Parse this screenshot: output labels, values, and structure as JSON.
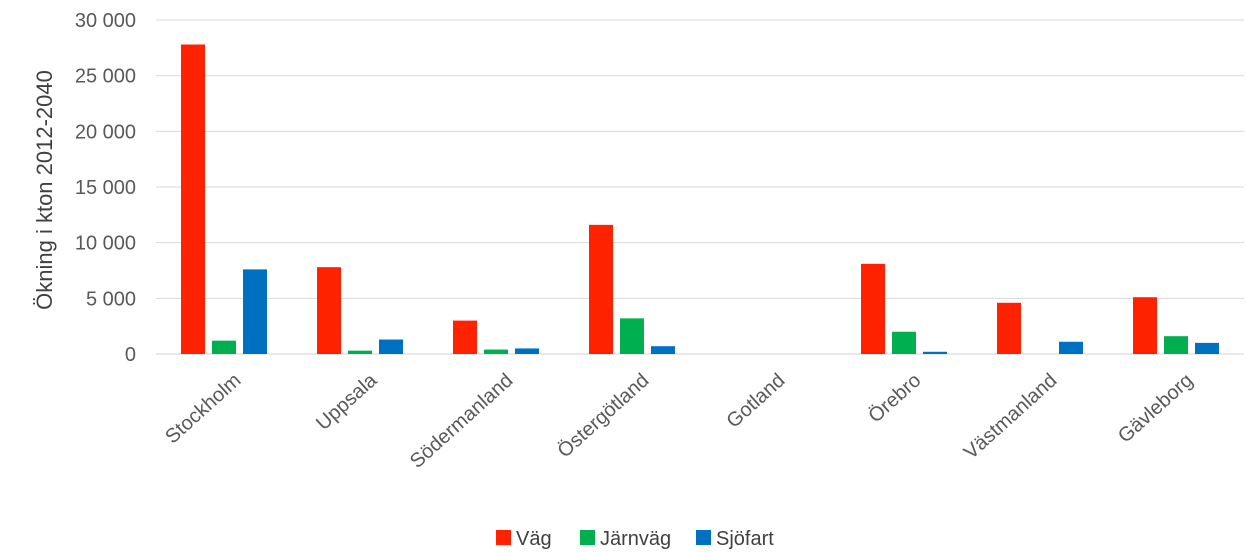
{
  "chart_data": {
    "type": "bar",
    "title": "",
    "xlabel": "",
    "ylabel": "Ökning i kton 2012-2040",
    "ylim": [
      0,
      30000
    ],
    "yticks": [
      0,
      5000,
      10000,
      15000,
      20000,
      25000,
      30000
    ],
    "ytick_labels": [
      "0",
      "5 000",
      "10 000",
      "15 000",
      "20 000",
      "25 000",
      "30 000"
    ],
    "categories": [
      "Stockholm",
      "Uppsala",
      "Södermanland",
      "Östergötland",
      "Gotland",
      "Örebro",
      "Västmanland",
      "Gävleborg"
    ],
    "series": [
      {
        "name": "Väg",
        "color": "#ff2200",
        "values": [
          27800,
          7800,
          3000,
          11600,
          0,
          8100,
          4600,
          5100
        ]
      },
      {
        "name": "Järnväg",
        "color": "#00b050",
        "values": [
          1200,
          300,
          400,
          3200,
          0,
          2000,
          0,
          1600
        ]
      },
      {
        "name": "Sjöfart",
        "color": "#0070c0",
        "values": [
          7600,
          1300,
          500,
          700,
          0,
          200,
          1100,
          1000
        ]
      }
    ],
    "grid": true,
    "legend": "bottom"
  }
}
